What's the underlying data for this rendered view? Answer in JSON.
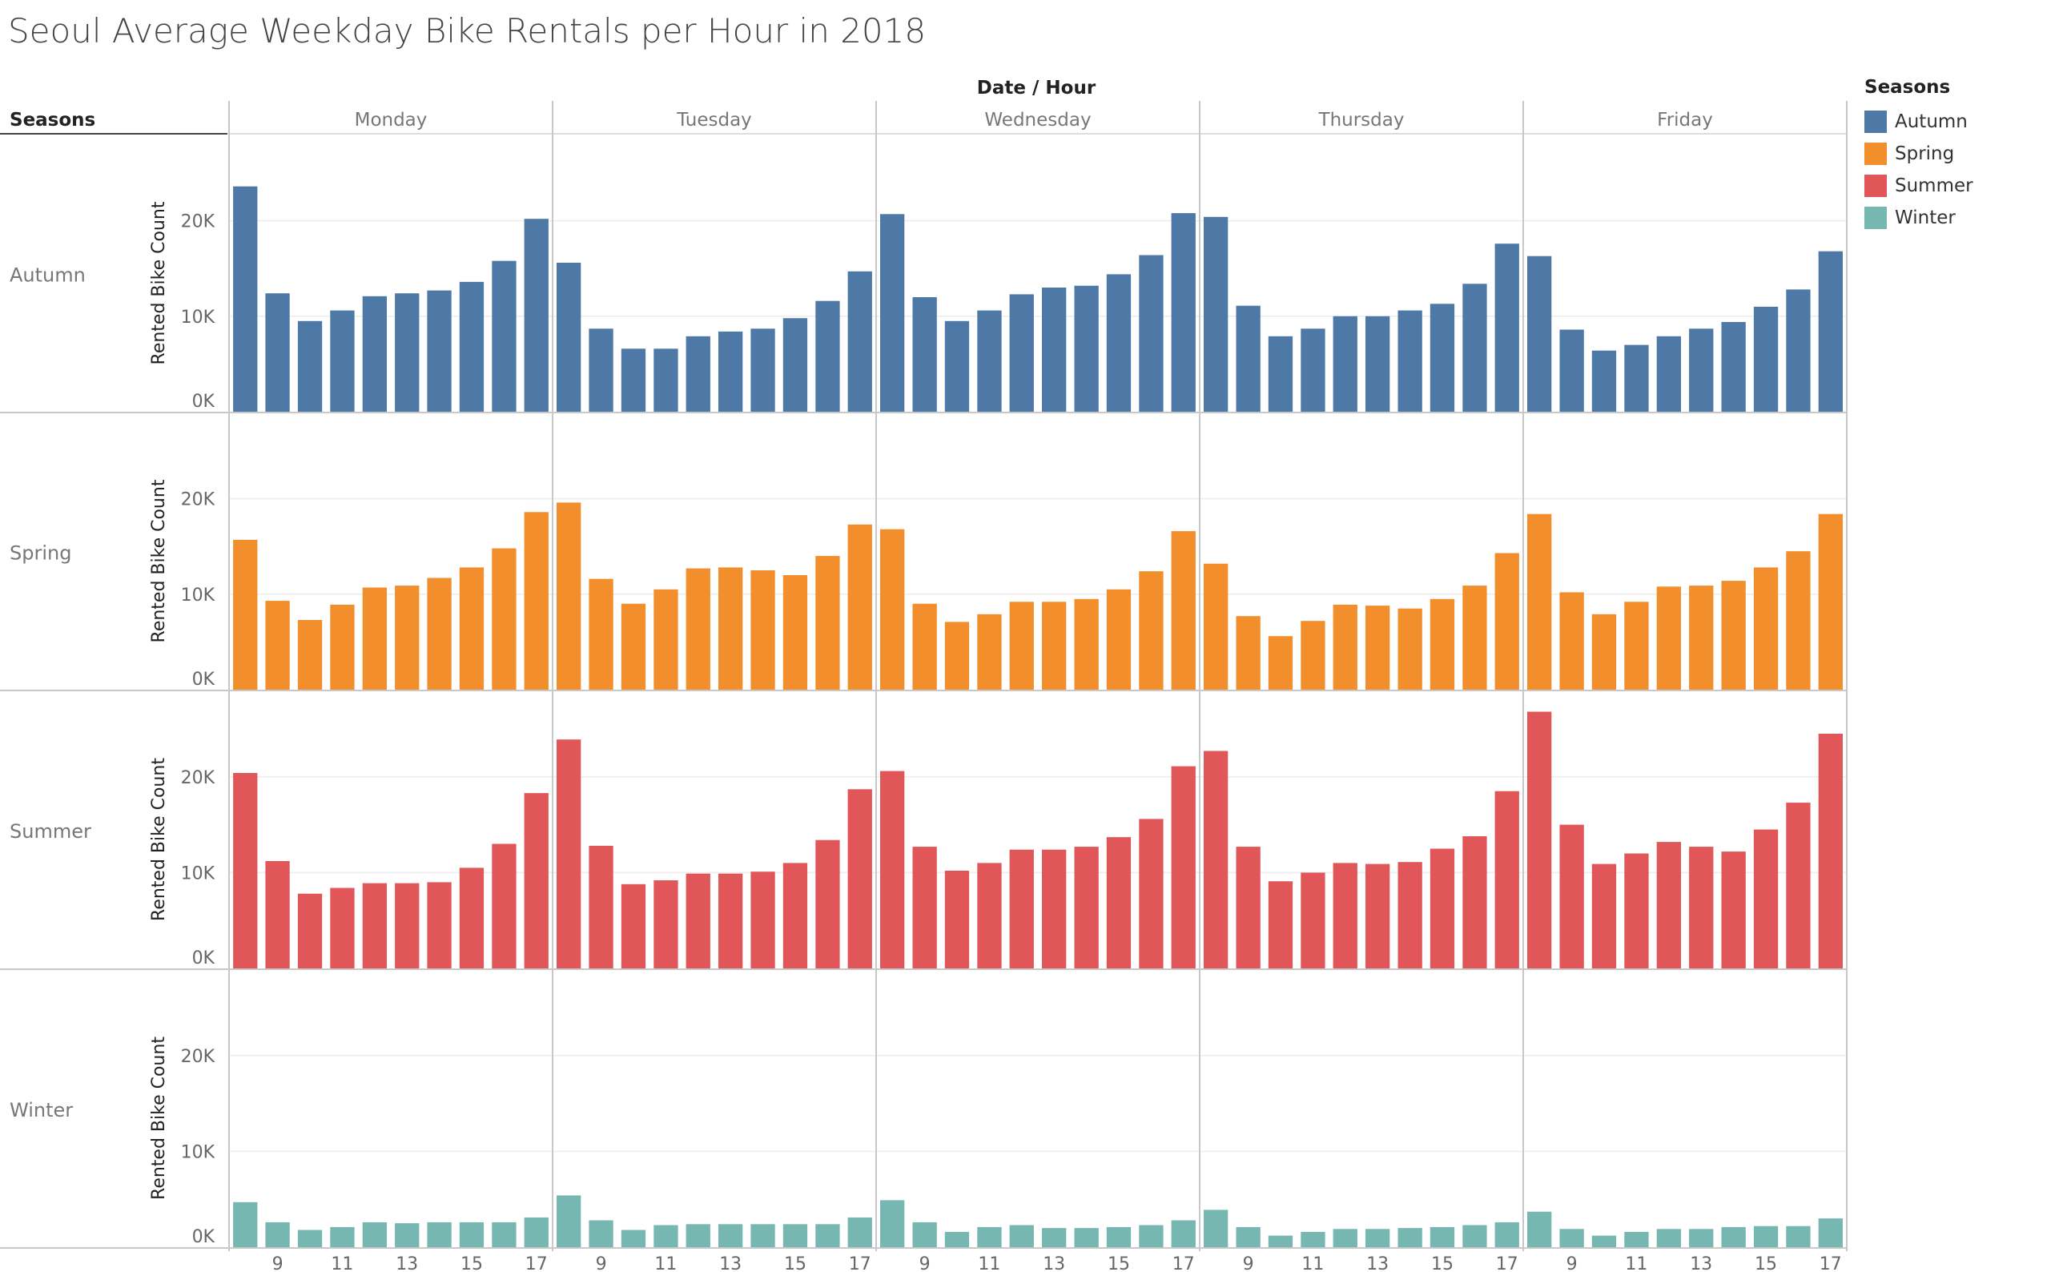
{
  "title": "Seoul Average Weekday Bike Rentals per Hour in 2018",
  "column_header_title": "Date / Hour",
  "row_header_title": "Seasons",
  "legend": {
    "title": "Seasons",
    "items": [
      {
        "label": "Autumn",
        "color": "#4e79a7"
      },
      {
        "label": "Spring",
        "color": "#f28e2b"
      },
      {
        "label": "Summer",
        "color": "#e15759"
      },
      {
        "label": "Winter",
        "color": "#76b7b2"
      }
    ]
  },
  "chart_data": {
    "type": "bar",
    "title": "Seoul Average Weekday Bike Rentals per Hour in 2018",
    "ylabel": "Rented Bike Count",
    "ylim": [
      0,
      25000
    ],
    "yticks": [
      0,
      10000,
      20000
    ],
    "ytick_labels": [
      "0K",
      "10K",
      "20K"
    ],
    "days": [
      "Monday",
      "Tuesday",
      "Wednesday",
      "Thursday",
      "Friday"
    ],
    "hours": [
      8,
      9,
      10,
      11,
      12,
      13,
      14,
      15,
      16,
      17
    ],
    "xtick_labels": [
      "9",
      "11",
      "13",
      "15",
      "17"
    ],
    "grid": true,
    "legend_position": "right",
    "seasons": [
      {
        "name": "Autumn",
        "color": "#4e79a7",
        "values": {
          "Monday": [
            23600,
            12400,
            9500,
            10600,
            12100,
            12400,
            12700,
            13600,
            15800,
            20200
          ],
          "Tuesday": [
            15600,
            8700,
            6600,
            6600,
            7900,
            8400,
            8700,
            9800,
            11600,
            14700
          ],
          "Wednesday": [
            20700,
            12000,
            9500,
            10600,
            12300,
            13000,
            13200,
            14400,
            16400,
            20800
          ],
          "Thursday": [
            20400,
            11100,
            7900,
            8700,
            10000,
            10000,
            10600,
            11300,
            13400,
            17600
          ],
          "Friday": [
            16300,
            8600,
            6400,
            7000,
            7900,
            8700,
            9400,
            11000,
            12800,
            16800
          ]
        }
      },
      {
        "name": "Spring",
        "color": "#f28e2b",
        "values": {
          "Monday": [
            15700,
            9300,
            7300,
            8900,
            10700,
            10900,
            11700,
            12800,
            14800,
            18600
          ],
          "Tuesday": [
            19600,
            11600,
            9000,
            10500,
            12700,
            12800,
            12500,
            12000,
            14000,
            17300
          ],
          "Wednesday": [
            16800,
            9000,
            7100,
            7900,
            9200,
            9200,
            9500,
            10500,
            12400,
            16600
          ],
          "Thursday": [
            13200,
            7700,
            5600,
            7200,
            8900,
            8800,
            8500,
            9500,
            10900,
            14300
          ],
          "Friday": [
            18400,
            10200,
            7900,
            9200,
            10800,
            10900,
            11400,
            12800,
            14500,
            18400
          ]
        }
      },
      {
        "name": "Summer",
        "color": "#e15759",
        "values": {
          "Monday": [
            20400,
            11200,
            7800,
            8400,
            8900,
            8900,
            9000,
            10500,
            13000,
            18300
          ],
          "Tuesday": [
            23900,
            12800,
            8800,
            9200,
            9900,
            9900,
            10100,
            11000,
            13400,
            18700
          ],
          "Wednesday": [
            20600,
            12700,
            10200,
            11000,
            12400,
            12400,
            12700,
            13700,
            15600,
            21100
          ],
          "Thursday": [
            22700,
            12700,
            9100,
            10000,
            11000,
            10900,
            11100,
            12500,
            13800,
            18500
          ],
          "Friday": [
            26800,
            15000,
            10900,
            12000,
            13200,
            12700,
            12200,
            14500,
            17300,
            24500
          ]
        }
      },
      {
        "name": "Winter",
        "color": "#76b7b2",
        "values": {
          "Monday": [
            4700,
            2600,
            1800,
            2100,
            2600,
            2500,
            2600,
            2600,
            2600,
            3100
          ],
          "Tuesday": [
            5400,
            2800,
            1800,
            2300,
            2400,
            2400,
            2400,
            2400,
            2400,
            3100
          ],
          "Wednesday": [
            4900,
            2600,
            1600,
            2100,
            2300,
            2000,
            2000,
            2100,
            2300,
            2800
          ],
          "Thursday": [
            3900,
            2100,
            1200,
            1600,
            1900,
            1900,
            2000,
            2100,
            2300,
            2600
          ],
          "Friday": [
            3700,
            1900,
            1200,
            1600,
            1900,
            1900,
            2100,
            2200,
            2200,
            3000
          ]
        }
      }
    ]
  }
}
